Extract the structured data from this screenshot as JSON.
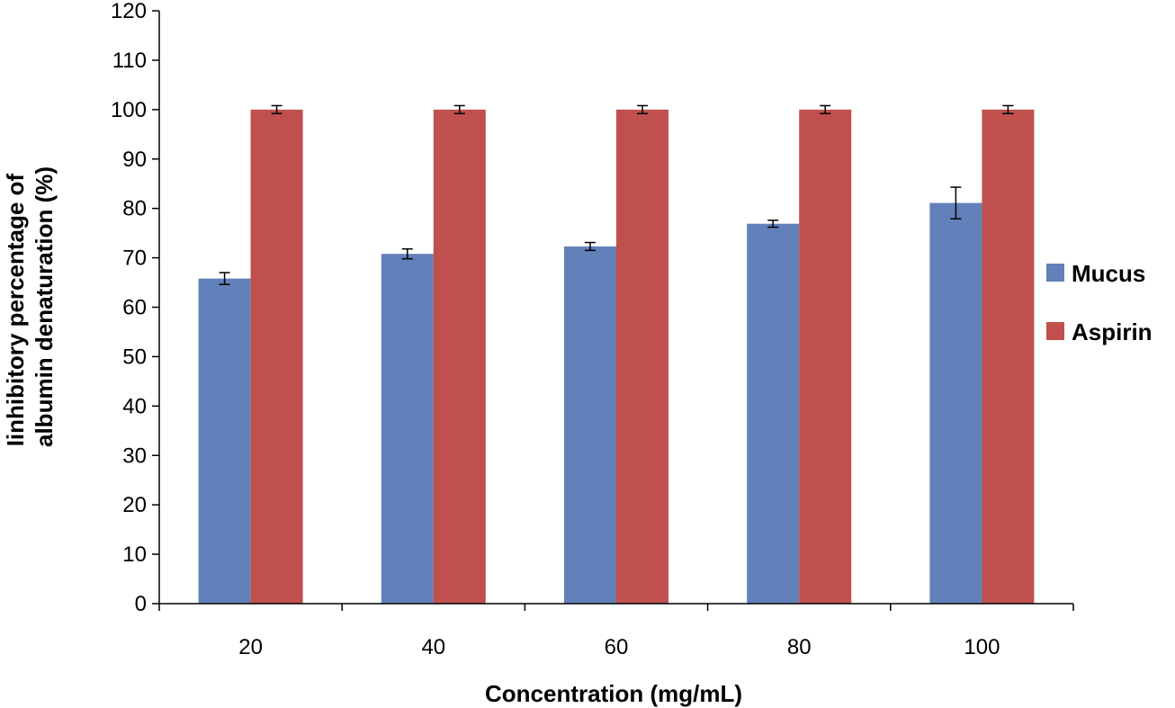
{
  "chart_data": {
    "type": "bar",
    "title": "",
    "xlabel": "Concentration (mg/mL)",
    "ylabel_lines": [
      "Iinhibitory percentage of",
      "albumin denaturation (%)"
    ],
    "categories": [
      "20",
      "40",
      "60",
      "80",
      "100"
    ],
    "ylim": [
      0,
      120
    ],
    "yticks": [
      0,
      10,
      20,
      30,
      40,
      50,
      60,
      70,
      80,
      90,
      100,
      110,
      120
    ],
    "grid": false,
    "legend_position": "right",
    "series": [
      {
        "name": "Mucus",
        "color": "#6280B9",
        "values": [
          65.8,
          70.8,
          72.3,
          76.9,
          81.1
        ],
        "errors": [
          1.2,
          1.0,
          0.8,
          0.7,
          3.2
        ]
      },
      {
        "name": "Aspirin",
        "color": "#C0504D",
        "values": [
          100,
          100,
          100,
          100,
          100
        ],
        "errors": [
          0.8,
          0.8,
          0.8,
          0.8,
          0.8
        ]
      }
    ]
  }
}
